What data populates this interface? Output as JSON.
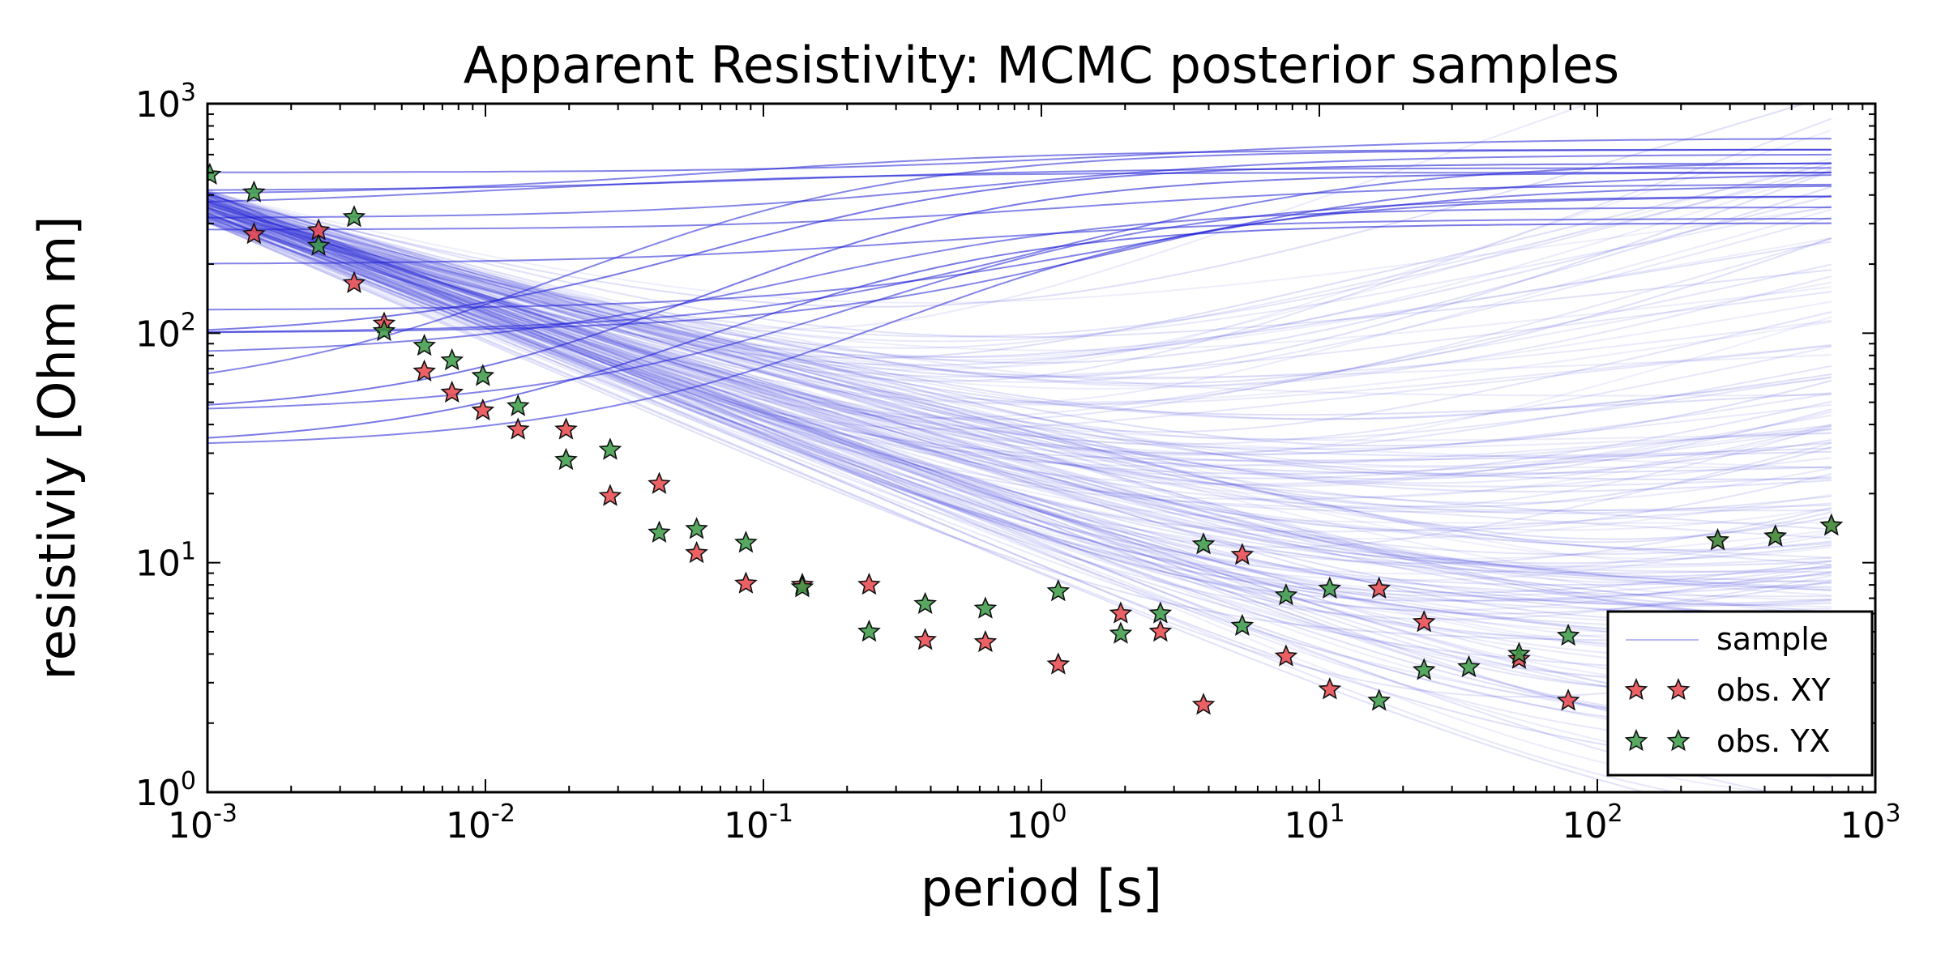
{
  "chart_data": {
    "type": "scatter",
    "title": "Apparent Resistivity: MCMC posterior samples",
    "xlabel": "period [s]",
    "ylabel": "resistiviy [Ohm m]",
    "xscale": "log",
    "yscale": "log",
    "xlim": [
      0.001,
      1000
    ],
    "ylim": [
      1,
      1000
    ],
    "grid": false,
    "legend_position": "lower right",
    "x_ticks": [
      {
        "base": "10",
        "exp": "-3"
      },
      {
        "base": "10",
        "exp": "-2"
      },
      {
        "base": "10",
        "exp": "-1"
      },
      {
        "base": "10",
        "exp": "0"
      },
      {
        "base": "10",
        "exp": "1"
      },
      {
        "base": "10",
        "exp": "2"
      },
      {
        "base": "10",
        "exp": "3"
      }
    ],
    "y_ticks": [
      {
        "base": "10",
        "exp": "0"
      },
      {
        "base": "10",
        "exp": "1"
      },
      {
        "base": "10",
        "exp": "2"
      },
      {
        "base": "10",
        "exp": "3"
      }
    ],
    "legend": [
      {
        "label": "sample",
        "kind": "line"
      },
      {
        "label": "obs. XY",
        "kind": "star"
      },
      {
        "label": "obs. YX",
        "kind": "star"
      }
    ],
    "colors": {
      "sample": "#1f1fd6",
      "obs_xy": "#e8454b",
      "obs_yx": "#3a9a45"
    },
    "series": [
      {
        "name": "obs. XY",
        "x": [
          0.00147,
          0.00251,
          0.00337,
          0.00432,
          0.00603,
          0.00758,
          0.00979,
          0.0131,
          0.0195,
          0.0281,
          0.0422,
          0.0575,
          0.0865,
          0.138,
          0.24,
          0.382,
          0.629,
          1.15,
          1.93,
          2.68,
          3.83,
          5.28,
          7.59,
          10.9,
          16.4,
          23.8,
          52.3,
          78.6,
          271,
          437,
          695
        ],
        "y": [
          270,
          280,
          165,
          110,
          68,
          55,
          46,
          38,
          38,
          19.5,
          22,
          11,
          8.1,
          8.0,
          8.0,
          4.6,
          4.5,
          3.6,
          6.0,
          5.0,
          2.4,
          10.8,
          3.9,
          2.8,
          7.7,
          5.5,
          3.8,
          2.5,
          12.5,
          13.0,
          14.5
        ]
      },
      {
        "name": "obs. YX",
        "x": [
          0.00102,
          0.00147,
          0.00251,
          0.00337,
          0.00432,
          0.00603,
          0.00758,
          0.00979,
          0.0131,
          0.0195,
          0.0281,
          0.0422,
          0.0575,
          0.0865,
          0.138,
          0.24,
          0.382,
          0.629,
          1.15,
          1.93,
          2.68,
          3.83,
          5.28,
          7.59,
          10.9,
          16.4,
          23.8,
          34.5,
          52.3,
          78.6,
          271,
          437,
          695
        ],
        "y": [
          490,
          410,
          240,
          320,
          102,
          88,
          76,
          65,
          48,
          28,
          31,
          13.5,
          14,
          12.2,
          7.8,
          5.0,
          6.6,
          6.3,
          7.5,
          4.9,
          6.0,
          12,
          5.3,
          7.2,
          7.7,
          2.5,
          3.4,
          3.5,
          4.0,
          4.8,
          12.5,
          13.0,
          14.5
        ]
      }
    ]
  }
}
